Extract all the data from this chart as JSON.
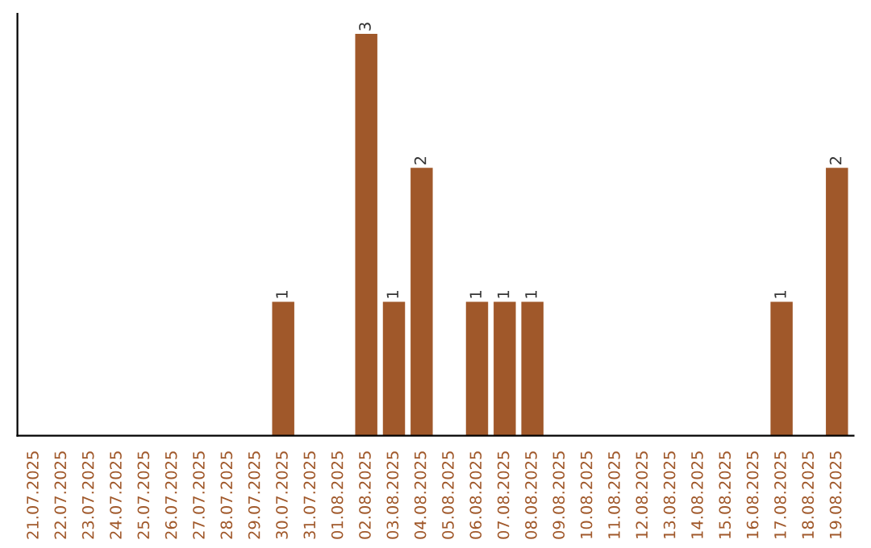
{
  "chart_data": {
    "type": "bar",
    "categories": [
      "21.07.2025",
      "22.07.2025",
      "23.07.2025",
      "24.07.2025",
      "25.07.2025",
      "26.07.2025",
      "27.07.2025",
      "28.07.2025",
      "29.07.2025",
      "30.07.2025",
      "31.07.2025",
      "01.08.2025",
      "02.08.2025",
      "03.08.2025",
      "04.08.2025",
      "05.08.2025",
      "06.08.2025",
      "07.08.2025",
      "08.08.2025",
      "09.08.2025",
      "10.08.2025",
      "11.08.2025",
      "12.08.2025",
      "13.08.2025",
      "14.08.2025",
      "15.08.2025",
      "16.08.2025",
      "17.08.2025",
      "18.08.2025",
      "19.08.2025"
    ],
    "values": [
      0,
      0,
      0,
      0,
      0,
      0,
      0,
      0,
      0,
      1,
      0,
      0,
      3,
      1,
      2,
      0,
      1,
      1,
      1,
      0,
      0,
      0,
      0,
      0,
      0,
      0,
      0,
      1,
      0,
      2
    ],
    "value_labels": [
      null,
      null,
      null,
      null,
      null,
      null,
      null,
      null,
      null,
      "1",
      null,
      null,
      "3",
      "1",
      "2",
      null,
      "1",
      "1",
      "1",
      null,
      null,
      null,
      null,
      null,
      null,
      null,
      null,
      "1",
      null,
      "2"
    ],
    "color": "#a0582a",
    "grid": false,
    "legend": false
  }
}
